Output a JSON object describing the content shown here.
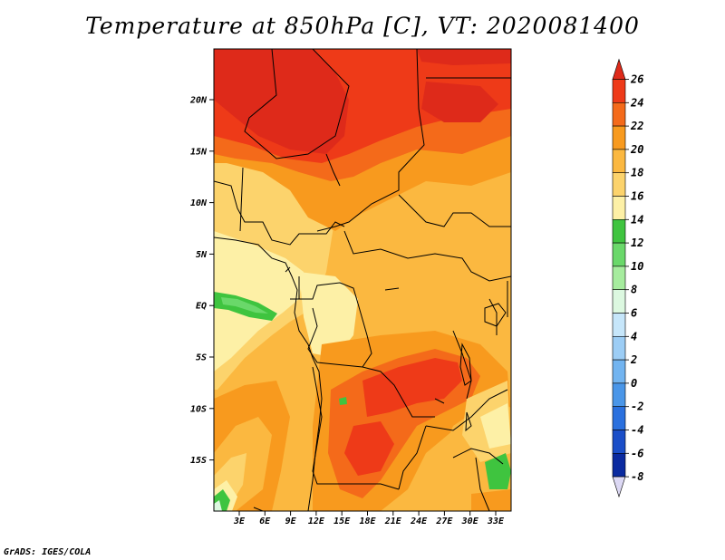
{
  "title": "Temperature at 850hPa [C], VT: 2020081400",
  "credit": "GrADS: IGES/COLA",
  "map": {
    "lat_labels": [
      "20N",
      "15N",
      "10N",
      "5N",
      "EQ",
      "5S",
      "10S",
      "15S"
    ],
    "lon_labels": [
      "3E",
      "6E",
      "9E",
      "12E",
      "15E",
      "18E",
      "21E",
      "24E",
      "27E",
      "30E",
      "33E"
    ]
  },
  "colorbar": {
    "labels": [
      "26",
      "24",
      "22",
      "20",
      "18",
      "16",
      "14",
      "12",
      "10",
      "8",
      "6",
      "4",
      "2",
      "0",
      "-2",
      "-4",
      "-6",
      "-8"
    ],
    "colors": {
      "gt26": "#de2a1a",
      "24_26": "#ee3a18",
      "22_24": "#f46a1a",
      "20_22": "#f89a1e",
      "18_20": "#fbb840",
      "16_18": "#fcd36c",
      "14_16": "#fdf0a6",
      "12_14": "#3fc43f",
      "10_12": "#6ad86a",
      "8_10": "#a6ec9e",
      "6_8": "#dcf8e0",
      "4_6": "#c6e6fa",
      "2_4": "#9ccdf5",
      "0_2": "#72b4f0",
      "m2_0": "#4a96e8",
      "m4_m2": "#2a70de",
      "m6_m4": "#1a4ec8",
      "m8_m6": "#0a2aa0",
      "lt_m8": "#0a1070",
      "below": "#dcd8f4"
    }
  }
}
